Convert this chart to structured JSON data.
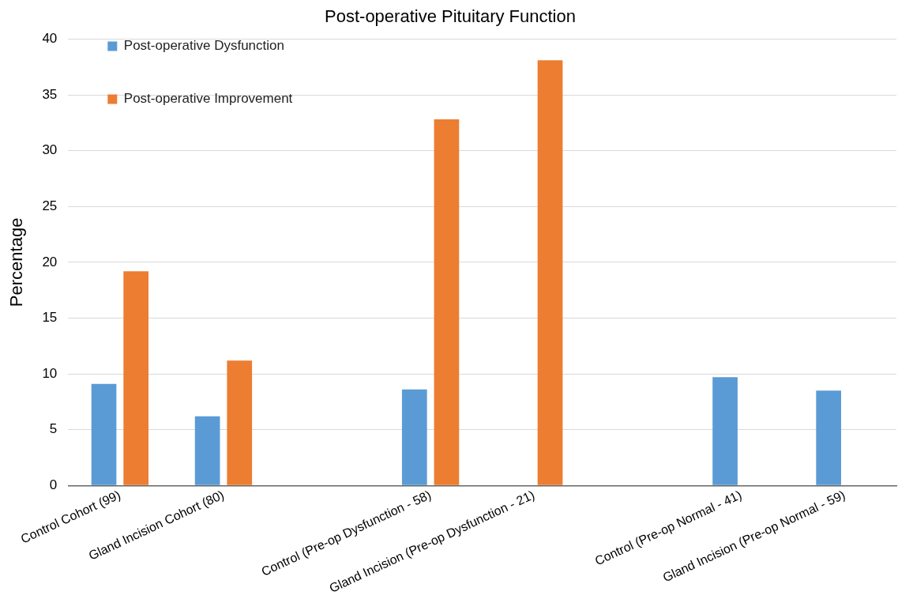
{
  "chart_data": {
    "type": "bar",
    "title": "Post-operative Pituitary Function",
    "ylabel": "Percentage",
    "categories": [
      "Control Cohort (99)",
      "Gland Incision Cohort (80)",
      null,
      "Control (Pre-op Dysfunction - 58)",
      "Gland Incision (Pre-op Dysfunction - 21)",
      null,
      "Control (Pre-op Normal - 41)",
      "Gland Incision (Pre-op Normal - 59)"
    ],
    "series": [
      {
        "name": "Post-operative Dysfunction",
        "color": "#5b9bd5",
        "values": [
          9.1,
          6.2,
          null,
          8.6,
          null,
          null,
          9.7,
          8.5
        ]
      },
      {
        "name": "Post-operative Improvement",
        "color": "#ed7d31",
        "values": [
          19.2,
          11.2,
          null,
          32.8,
          38.1,
          null,
          null,
          null
        ]
      }
    ],
    "ylim": [
      0,
      40
    ],
    "yticks": [
      0,
      5,
      10,
      15,
      20,
      25,
      30,
      35,
      40
    ],
    "grid": "y",
    "legend": "top left"
  }
}
